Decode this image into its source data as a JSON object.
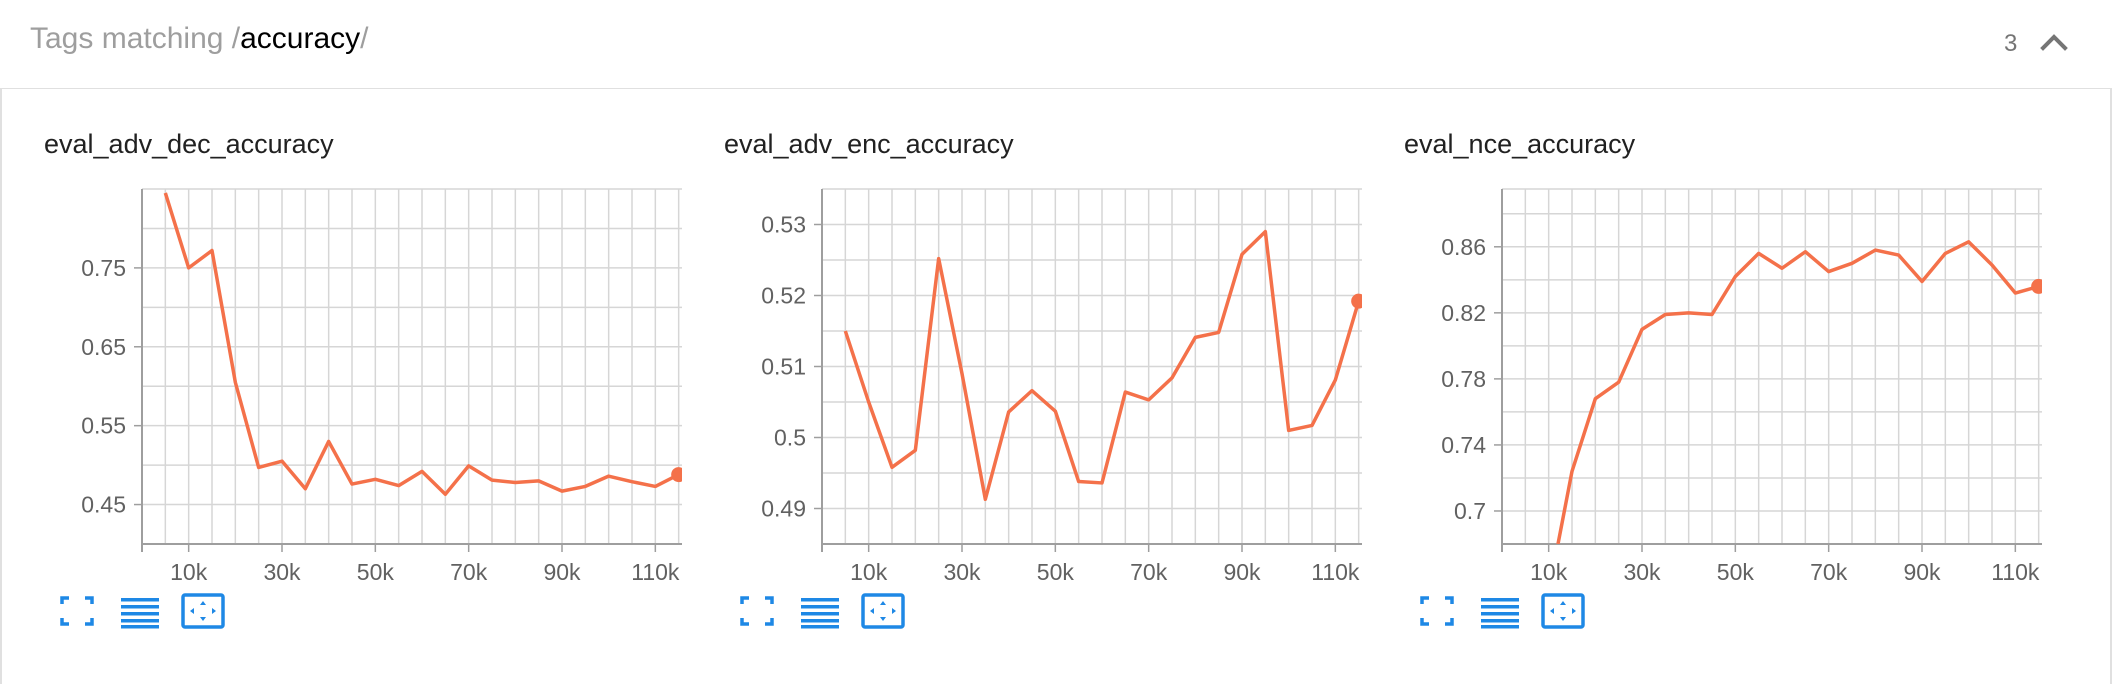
{
  "header": {
    "title_prefix": "Tags matching /",
    "query": "accuracy",
    "title_suffix": "/",
    "count": "3",
    "collapse_icon": "chevron-up-icon"
  },
  "colors": {
    "series": "#f4714a",
    "grid": "#d6d6d6",
    "axis": "#9e9e9e",
    "icon_blue": "#1e88e5"
  },
  "card_actions": [
    {
      "name": "fullscreen",
      "icon": "fullscreen-icon"
    },
    {
      "name": "toggle-log-scale",
      "icon": "list-lines-icon"
    },
    {
      "name": "fit-domain",
      "icon": "fit-to-data-icon"
    }
  ],
  "chart_data": [
    {
      "type": "line",
      "title": "eval_adv_dec_accuracy",
      "xlabel": "",
      "ylabel": "",
      "xlim": [
        0,
        120000
      ],
      "ylim": [
        0.4,
        0.85
      ],
      "x_ticks": [
        10000,
        30000,
        50000,
        70000,
        90000,
        110000
      ],
      "x_tick_labels": [
        "10k",
        "30k",
        "50k",
        "70k",
        "90k",
        "110k"
      ],
      "y_ticks": [
        0.45,
        0.55,
        0.65,
        0.75
      ],
      "y_tick_labels": [
        "0.45",
        "0.55",
        "0.65",
        "0.75"
      ],
      "grid": true,
      "series": [
        {
          "x": [
            5000,
            10000,
            15000,
            20000,
            25000,
            30000,
            35000,
            40000,
            45000,
            50000,
            55000,
            60000,
            65000,
            70000,
            75000,
            80000,
            85000,
            90000,
            95000,
            100000,
            105000,
            110000,
            115000
          ],
          "values": [
            0.845,
            0.75,
            0.772,
            0.605,
            0.497,
            0.505,
            0.47,
            0.53,
            0.476,
            0.482,
            0.474,
            0.492,
            0.463,
            0.499,
            0.481,
            0.478,
            0.48,
            0.467,
            0.473,
            0.486,
            0.479,
            0.473,
            0.488
          ]
        }
      ]
    },
    {
      "type": "line",
      "title": "eval_adv_enc_accuracy",
      "xlabel": "",
      "ylabel": "",
      "xlim": [
        0,
        120000
      ],
      "ylim": [
        0.485,
        0.535
      ],
      "x_ticks": [
        10000,
        30000,
        50000,
        70000,
        90000,
        110000
      ],
      "x_tick_labels": [
        "10k",
        "30k",
        "50k",
        "70k",
        "90k",
        "110k"
      ],
      "y_ticks": [
        0.49,
        0.5,
        0.51,
        0.52,
        0.53
      ],
      "y_tick_labels": [
        "0.49",
        "0.5",
        "0.51",
        "0.52",
        "0.53"
      ],
      "grid": true,
      "series": [
        {
          "x": [
            5000,
            10000,
            15000,
            20000,
            25000,
            30000,
            35000,
            40000,
            45000,
            50000,
            55000,
            60000,
            65000,
            70000,
            75000,
            80000,
            85000,
            90000,
            95000,
            100000,
            105000,
            110000,
            115000
          ],
          "values": [
            0.515,
            0.505,
            0.4958,
            0.4982,
            0.5252,
            0.509,
            0.4913,
            0.5036,
            0.5066,
            0.5037,
            0.4938,
            0.4936,
            0.5064,
            0.5053,
            0.5084,
            0.5141,
            0.5148,
            0.5258,
            0.529,
            0.501,
            0.5017,
            0.5081,
            0.5192
          ]
        }
      ]
    },
    {
      "type": "line",
      "title": "eval_nce_accuracy",
      "xlabel": "",
      "ylabel": "",
      "xlim": [
        0,
        120000
      ],
      "ylim": [
        0.68,
        0.895
      ],
      "x_ticks": [
        10000,
        30000,
        50000,
        70000,
        90000,
        110000
      ],
      "x_tick_labels": [
        "10k",
        "30k",
        "50k",
        "70k",
        "90k",
        "110k"
      ],
      "y_ticks": [
        0.7,
        0.74,
        0.78,
        0.82,
        0.86
      ],
      "y_tick_labels": [
        "0.7",
        "0.74",
        "0.78",
        "0.82",
        "0.86"
      ],
      "grid": true,
      "series": [
        {
          "x": [
            12000,
            15000,
            20000,
            25000,
            30000,
            35000,
            40000,
            45000,
            50000,
            55000,
            60000,
            65000,
            70000,
            75000,
            80000,
            85000,
            90000,
            95000,
            100000,
            105000,
            110000,
            115000
          ],
          "values": [
            0.68,
            0.724,
            0.768,
            0.778,
            0.81,
            0.819,
            0.82,
            0.819,
            0.842,
            0.856,
            0.847,
            0.857,
            0.845,
            0.85,
            0.858,
            0.855,
            0.839,
            0.856,
            0.863,
            0.849,
            0.832,
            0.836
          ]
        }
      ]
    }
  ]
}
